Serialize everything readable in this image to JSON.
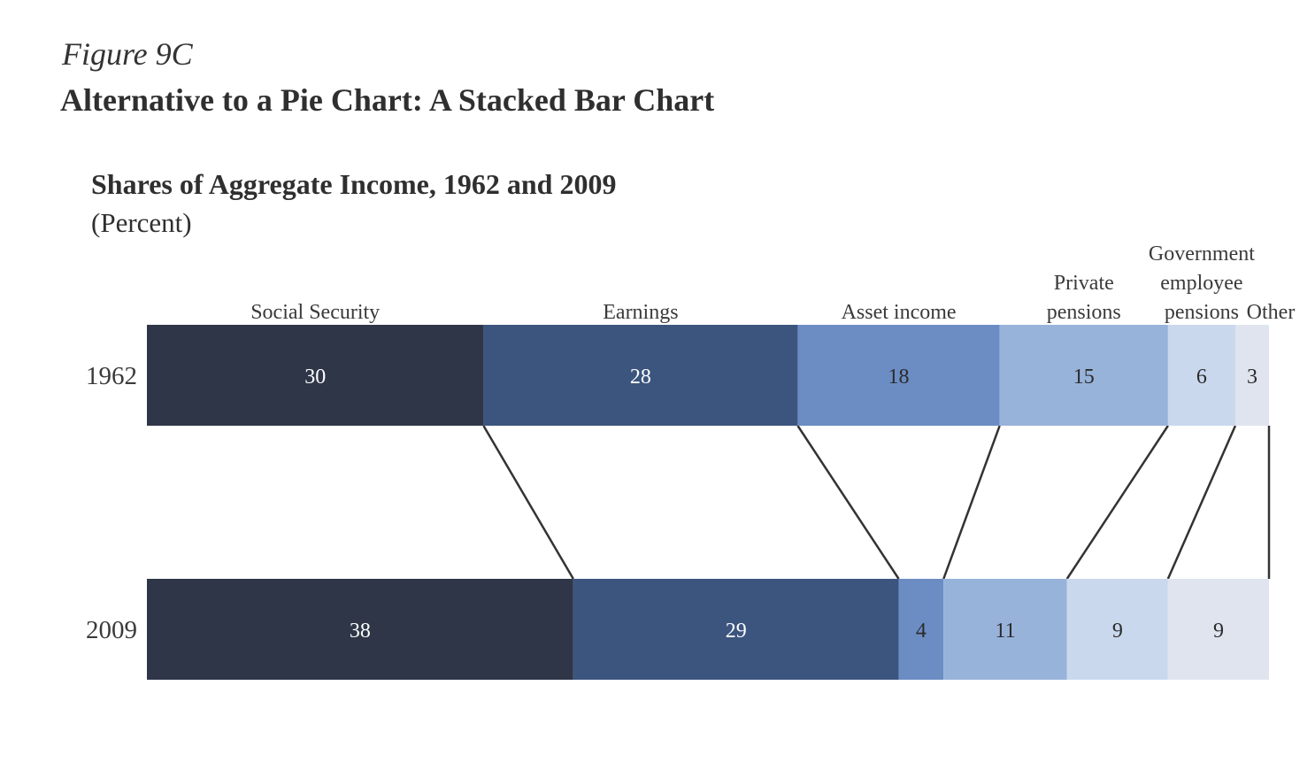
{
  "figure": {
    "label": "Figure 9C",
    "title": "Alternative to a Pie Chart: A Stacked Bar Chart"
  },
  "chart_data": {
    "type": "bar",
    "orientation": "horizontal",
    "stacked": true,
    "normalized_percent": true,
    "title": "Shares of Aggregate Income, 1962 and 2009",
    "subtitle": "(Percent)",
    "categories": [
      "1962",
      "2009"
    ],
    "series": [
      {
        "name": "Social Security",
        "label_lines": [
          "Social Security"
        ],
        "color": "#2e3647",
        "text_color": "#ffffff",
        "values": [
          30,
          38
        ]
      },
      {
        "name": "Earnings",
        "label_lines": [
          "Earnings"
        ],
        "color": "#3c557e",
        "text_color": "#ffffff",
        "values": [
          28,
          29
        ]
      },
      {
        "name": "Asset income",
        "label_lines": [
          "Asset income"
        ],
        "color": "#6b8dc4",
        "text_color": "#2b2b2b",
        "values": [
          18,
          4
        ]
      },
      {
        "name": "Private pensions",
        "label_lines": [
          "Private",
          "pensions"
        ],
        "color": "#98b3da",
        "text_color": "#2b2b2b",
        "values": [
          15,
          11
        ]
      },
      {
        "name": "Government employee pensions",
        "label_lines": [
          "Government",
          "employee",
          "pensions"
        ],
        "color": "#cad8ee",
        "text_color": "#2b2b2b",
        "values": [
          6,
          9
        ]
      },
      {
        "name": "Other",
        "label_lines": [
          "Other"
        ],
        "color": "#dfe4ef",
        "text_color": "#2b2b2b",
        "values": [
          3,
          9
        ]
      }
    ],
    "connector_lines": true,
    "grid": false,
    "legend": "top, labels above 1962 segments"
  }
}
